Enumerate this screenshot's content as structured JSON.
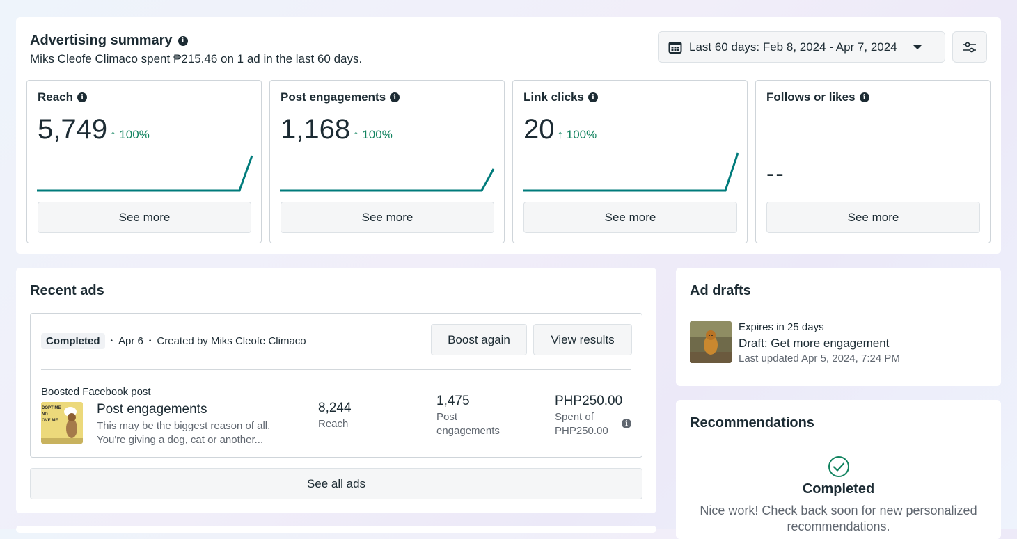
{
  "summary": {
    "title": "Advertising summary",
    "subtitle": "Miks Cleofe Climaco spent ₱215.46 on 1 ad in the last 60 days.",
    "date_range": "Last 60 days: Feb 8, 2024 - Apr 7, 2024",
    "metrics": [
      {
        "title": "Reach",
        "value": "5,749",
        "delta": "100%",
        "see_more": "See more"
      },
      {
        "title": "Post engagements",
        "value": "1,168",
        "delta": "100%",
        "see_more": "See more"
      },
      {
        "title": "Link clicks",
        "value": "20",
        "delta": "100%",
        "see_more": "See more"
      },
      {
        "title": "Follows or likes",
        "value": "--",
        "delta": "",
        "see_more": "See more"
      }
    ]
  },
  "recent_ads": {
    "title": "Recent ads",
    "status": "Completed",
    "date": "Apr 6",
    "created_by": "Created by Miks Cleofe Climaco",
    "boost_again": "Boost again",
    "view_results": "View results",
    "ad_type": "Boosted Facebook post",
    "ad_name": "Post engagements",
    "ad_desc_line1": "This may be the biggest reason of all.",
    "ad_desc_line2": "You're giving a dog, cat or another...",
    "reach_value": "8,244",
    "reach_label": "Reach",
    "engagements_value": "1,475",
    "engagements_label_1": "Post",
    "engagements_label_2": "engagements",
    "spent_value": "PHP250.00",
    "spent_label_1": "Spent of",
    "spent_label_2": "PHP250.00",
    "see_all": "See all ads"
  },
  "ad_drafts": {
    "title": "Ad drafts",
    "expires": "Expires in 25 days",
    "name": "Draft: Get more engagement",
    "updated": "Last updated Apr 5, 2024, 7:24 PM"
  },
  "recommendations": {
    "title": "Recommendations",
    "status": "Completed",
    "message": "Nice work! Check back soon for new personalized recommendations."
  },
  "colors": {
    "accent_teal": "#007b7b",
    "positive_green": "#11835f",
    "text_primary": "#1c2b33"
  }
}
